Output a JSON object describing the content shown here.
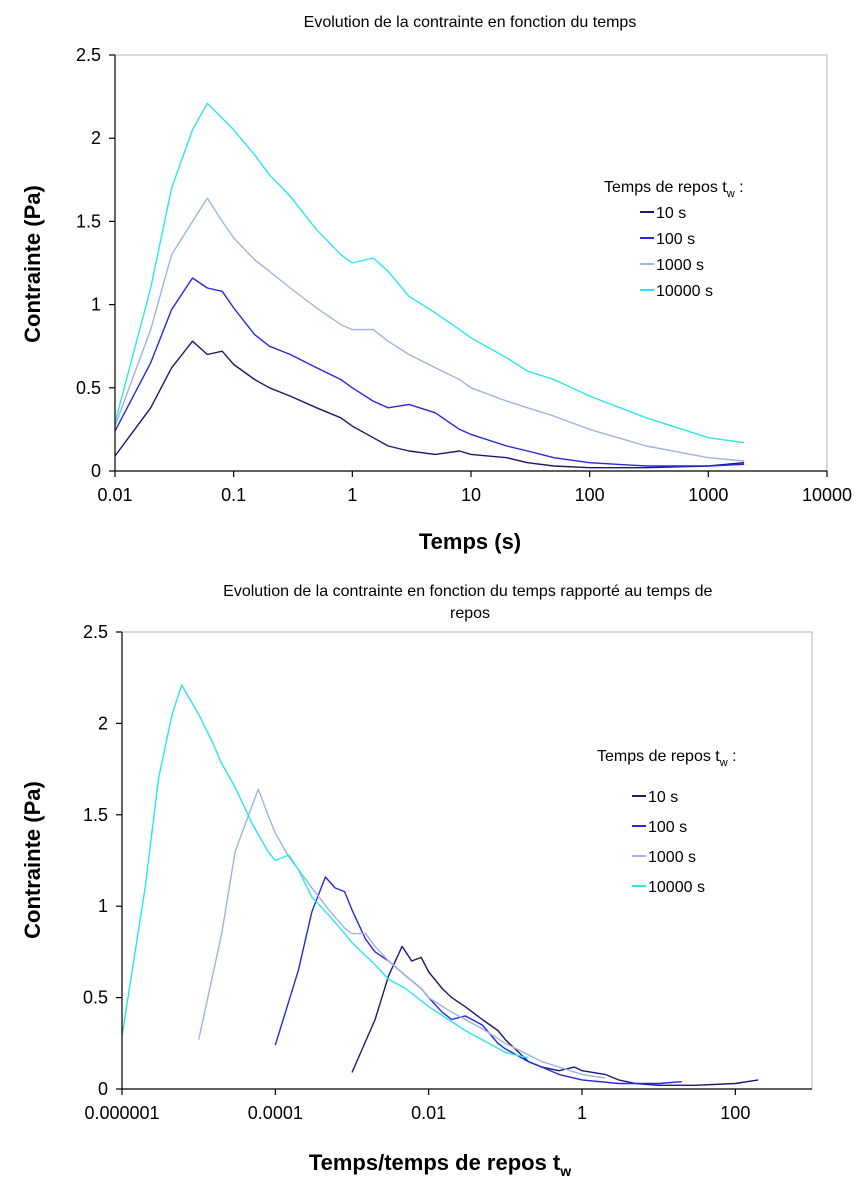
{
  "chart_data": [
    {
      "type": "line",
      "title": "Evolution de la contrainte en fonction du temps",
      "xlabel": "Temps (s)",
      "ylabel": "Contrainte (Pa)",
      "xscale": "log",
      "xlim": [
        0.01,
        10000
      ],
      "ylim": [
        0,
        2.5
      ],
      "xticks": [
        "0.01",
        "0.1",
        "1",
        "10",
        "100",
        "1000",
        "10000"
      ],
      "yticks": [
        "0",
        "0.5",
        "1",
        "1.5",
        "2",
        "2.5"
      ],
      "grid": false,
      "legend": {
        "placement": "right",
        "title_prefix": "Temps de repos t",
        "title_sub": "w",
        "title_suffix": " :"
      },
      "series": [
        {
          "name": "10 s",
          "color": "#1a1a6e",
          "x": [
            0.01,
            0.02,
            0.03,
            0.045,
            0.06,
            0.08,
            0.1,
            0.15,
            0.2,
            0.3,
            0.5,
            0.8,
            1,
            1.5,
            2,
            3,
            5,
            8,
            10,
            20,
            30,
            50,
            100,
            300,
            1000,
            2000
          ],
          "y": [
            0.09,
            0.38,
            0.62,
            0.78,
            0.7,
            0.72,
            0.64,
            0.55,
            0.5,
            0.45,
            0.38,
            0.32,
            0.27,
            0.2,
            0.15,
            0.12,
            0.1,
            0.12,
            0.1,
            0.08,
            0.05,
            0.03,
            0.02,
            0.02,
            0.03,
            0.05
          ]
        },
        {
          "name": "100 s",
          "color": "#2828e0",
          "x": [
            0.01,
            0.02,
            0.03,
            0.045,
            0.06,
            0.08,
            0.1,
            0.15,
            0.2,
            0.3,
            0.5,
            0.8,
            1,
            1.5,
            2,
            3,
            5,
            8,
            10,
            20,
            30,
            50,
            100,
            300,
            1000,
            2000
          ],
          "y": [
            0.24,
            0.65,
            0.97,
            1.16,
            1.1,
            1.08,
            0.98,
            0.82,
            0.75,
            0.7,
            0.62,
            0.55,
            0.5,
            0.42,
            0.38,
            0.4,
            0.35,
            0.25,
            0.22,
            0.15,
            0.12,
            0.08,
            0.05,
            0.03,
            0.03,
            0.04
          ]
        },
        {
          "name": "1000 s",
          "color": "#9db4dc",
          "x": [
            0.01,
            0.02,
            0.03,
            0.045,
            0.06,
            0.08,
            0.1,
            0.15,
            0.2,
            0.3,
            0.5,
            0.8,
            1,
            1.5,
            2,
            3,
            5,
            8,
            10,
            20,
            30,
            50,
            100,
            300,
            1000,
            2000
          ],
          "y": [
            0.27,
            0.85,
            1.3,
            1.5,
            1.64,
            1.5,
            1.4,
            1.27,
            1.2,
            1.1,
            0.98,
            0.88,
            0.85,
            0.85,
            0.78,
            0.7,
            0.62,
            0.55,
            0.5,
            0.42,
            0.38,
            0.33,
            0.25,
            0.15,
            0.08,
            0.06
          ]
        },
        {
          "name": "10000 s",
          "color": "#29e6f0",
          "x": [
            0.01,
            0.02,
            0.03,
            0.045,
            0.06,
            0.08,
            0.1,
            0.15,
            0.2,
            0.3,
            0.5,
            0.8,
            1,
            1.5,
            2,
            3,
            5,
            8,
            10,
            20,
            30,
            50,
            100,
            300,
            1000,
            2000
          ],
          "y": [
            0.29,
            1.1,
            1.7,
            2.05,
            2.21,
            2.12,
            2.05,
            1.9,
            1.78,
            1.65,
            1.45,
            1.3,
            1.25,
            1.28,
            1.2,
            1.05,
            0.95,
            0.85,
            0.8,
            0.68,
            0.6,
            0.55,
            0.45,
            0.32,
            0.2,
            0.17
          ]
        }
      ]
    },
    {
      "type": "line",
      "title": "Evolution de la contrainte en fonction du temps rapporté au temps de repos",
      "xlabel_main": "Temps/temps de repos t",
      "xlabel_sub": "w",
      "ylabel": "Contrainte (Pa)",
      "xscale": "log",
      "xlim": [
        1e-06,
        1000
      ],
      "ylim": [
        0,
        2.5
      ],
      "xticks": [
        "0.000001",
        "0.0001",
        "0.01",
        "1",
        "100"
      ],
      "yticks": [
        "0",
        "0.5",
        "1",
        "1.5",
        "2",
        "2.5"
      ],
      "grid": false,
      "legend": {
        "placement": "right",
        "title_prefix": "Temps de repos t",
        "title_sub": "w",
        "title_suffix": " :"
      },
      "series": [
        {
          "name": "10 s",
          "color": "#1a1a6e",
          "x": [
            0.001,
            0.002,
            0.003,
            0.0045,
            0.006,
            0.008,
            0.01,
            0.015,
            0.02,
            0.03,
            0.05,
            0.08,
            0.1,
            0.15,
            0.2,
            0.3,
            0.5,
            0.8,
            1,
            2,
            3,
            5,
            10,
            30,
            100,
            200
          ],
          "y": [
            0.09,
            0.38,
            0.62,
            0.78,
            0.7,
            0.72,
            0.64,
            0.55,
            0.5,
            0.45,
            0.38,
            0.32,
            0.27,
            0.2,
            0.15,
            0.12,
            0.1,
            0.12,
            0.1,
            0.08,
            0.05,
            0.03,
            0.02,
            0.02,
            0.03,
            0.05
          ]
        },
        {
          "name": "100 s",
          "color": "#2828e0",
          "x": [
            0.0001,
            0.0002,
            0.0003,
            0.00045,
            0.0006,
            0.0008,
            0.001,
            0.0015,
            0.002,
            0.003,
            0.005,
            0.008,
            0.01,
            0.015,
            0.02,
            0.03,
            0.05,
            0.08,
            0.1,
            0.2,
            0.3,
            0.5,
            1,
            3,
            10,
            20
          ],
          "y": [
            0.24,
            0.65,
            0.97,
            1.16,
            1.1,
            1.08,
            0.98,
            0.82,
            0.75,
            0.7,
            0.62,
            0.55,
            0.5,
            0.42,
            0.38,
            0.4,
            0.35,
            0.25,
            0.22,
            0.15,
            0.12,
            0.08,
            0.05,
            0.03,
            0.03,
            0.04
          ]
        },
        {
          "name": "1000 s",
          "color": "#9db4dc",
          "x": [
            1e-05,
            2e-05,
            3e-05,
            4.5e-05,
            6e-05,
            8e-05,
            0.0001,
            0.00015,
            0.0002,
            0.0003,
            0.0005,
            0.0008,
            0.001,
            0.0015,
            0.002,
            0.003,
            0.005,
            0.008,
            0.01,
            0.02,
            0.03,
            0.05,
            0.1,
            0.3,
            1,
            2
          ],
          "y": [
            0.27,
            0.85,
            1.3,
            1.5,
            1.64,
            1.5,
            1.4,
            1.27,
            1.2,
            1.1,
            0.98,
            0.88,
            0.85,
            0.85,
            0.78,
            0.7,
            0.62,
            0.55,
            0.5,
            0.42,
            0.38,
            0.33,
            0.25,
            0.15,
            0.08,
            0.06
          ]
        },
        {
          "name": "10000 s",
          "color": "#29e6f0",
          "x": [
            1e-06,
            2e-06,
            3e-06,
            4.5e-06,
            6e-06,
            8e-06,
            1e-05,
            1.5e-05,
            2e-05,
            3e-05,
            5e-05,
            8e-05,
            0.0001,
            0.00015,
            0.0002,
            0.0003,
            0.0005,
            0.0008,
            0.001,
            0.002,
            0.003,
            0.005,
            0.01,
            0.03,
            0.1,
            0.2
          ],
          "y": [
            0.29,
            1.1,
            1.7,
            2.05,
            2.21,
            2.12,
            2.05,
            1.9,
            1.78,
            1.65,
            1.45,
            1.3,
            1.25,
            1.28,
            1.2,
            1.05,
            0.95,
            0.85,
            0.8,
            0.68,
            0.6,
            0.55,
            0.45,
            0.32,
            0.2,
            0.17
          ]
        }
      ]
    }
  ]
}
